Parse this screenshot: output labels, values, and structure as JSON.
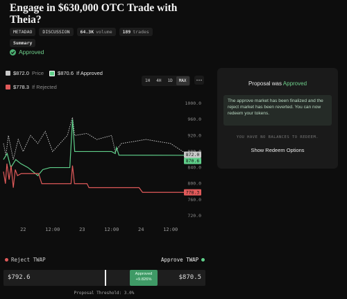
{
  "header": {
    "title": "Engage in $630,000 OTC Trade with Theia?",
    "tags": [
      "METADAO",
      "DISCUSSION"
    ],
    "volume": {
      "value": "64.3K",
      "label": "volume"
    },
    "trades": {
      "value": "189",
      "label": "trades"
    },
    "summary": "Summary",
    "status": "Approved"
  },
  "range_buttons": [
    "1H",
    "4H",
    "1D",
    "MAX"
  ],
  "chart_data": {
    "type": "line",
    "xlim": [
      -8,
      72.5
    ],
    "xticks": [
      {
        "value": 0,
        "label": "22"
      },
      {
        "value": 12,
        "label": "12:00"
      },
      {
        "value": 24,
        "label": "23"
      },
      {
        "value": 36,
        "label": "12:00"
      },
      {
        "value": 48,
        "label": "24"
      },
      {
        "value": 60,
        "label": "12:00"
      }
    ],
    "ylim": [
      705,
      1015
    ],
    "yticks": [
      {
        "value": 720,
        "label": "720.0"
      },
      {
        "value": 760,
        "label": "760.0"
      },
      {
        "value": 800,
        "label": "800.0"
      },
      {
        "value": 840,
        "label": "840.0"
      },
      {
        "value": 880,
        "label": "880.0"
      },
      {
        "value": 920,
        "label": "920.0"
      },
      {
        "value": 960,
        "label": "960.0"
      },
      {
        "value": 1000,
        "label": "1000.0"
      }
    ],
    "series": [
      {
        "name": "Price",
        "legend_value": "$872.0",
        "color": "#c8c8c8",
        "dashed": true,
        "x": [
          -8,
          -7,
          -6,
          -4,
          -2,
          0,
          3,
          6,
          9,
          12,
          15,
          18,
          20.1,
          21,
          26,
          30,
          36,
          37.5,
          40,
          45,
          50,
          55,
          60,
          65,
          72.5
        ],
        "values": [
          900,
          870,
          920,
          860,
          910,
          880,
          920,
          900,
          930,
          880,
          900,
          920,
          965,
          920,
          925,
          910,
          920,
          880,
          900,
          905,
          910,
          905,
          900,
          880,
          872
        ],
        "value_labels": [
          null,
          null,
          null,
          null,
          null,
          null,
          null,
          null,
          null,
          null,
          null,
          null,
          null,
          null,
          null,
          null,
          null,
          null,
          null,
          null,
          null,
          null,
          null,
          null,
          "872.0"
        ]
      },
      {
        "name": "If Approved",
        "legend_value": "$870.6",
        "color": "#5fcf8a",
        "dashed": false,
        "x": [
          -8,
          -6.5,
          -5,
          -3,
          -1,
          2,
          6,
          8,
          11,
          19,
          20.1,
          21,
          26,
          36,
          37.5,
          38,
          39,
          72.5
        ],
        "values": [
          860,
          875,
          840,
          860,
          850,
          840,
          820,
          835,
          840,
          840,
          960,
          880,
          880,
          880,
          875,
          890,
          871,
          870.6
        ],
        "value_labels": [
          null,
          null,
          null,
          null,
          null,
          null,
          null,
          null,
          null,
          null,
          null,
          null,
          null,
          null,
          null,
          null,
          null,
          "870.6"
        ]
      },
      {
        "name": "If Rejected",
        "legend_value": "$778.3",
        "color": "#e05a5a",
        "dashed": false,
        "x": [
          -8,
          -7.2,
          -6.6,
          -5.7,
          -4.9,
          -4,
          -3.2,
          -2.3,
          -0.8,
          2,
          6.3,
          7.6,
          11,
          19.5,
          20.1,
          20.9,
          26,
          26.8,
          47.2,
          48.6,
          72.5
        ],
        "values": [
          830,
          800,
          850,
          810,
          845,
          790,
          835,
          820,
          825,
          825,
          825,
          800,
          800,
          800,
          845,
          800,
          800,
          790,
          790,
          778.3,
          778.3
        ],
        "value_labels": [
          null,
          null,
          null,
          null,
          null,
          null,
          null,
          null,
          null,
          null,
          null,
          null,
          null,
          null,
          null,
          null,
          null,
          null,
          null,
          null,
          "778.3"
        ]
      }
    ]
  },
  "panel": {
    "title_prefix": "Proposal was",
    "title_status": "Approved",
    "message": "The approve market has been finalized and the reject market has been reverted. You can now redeem your tokens.",
    "balances": "YOU HAVE NO BALANCES TO REDEEM.",
    "action": "Show Redeem Options"
  },
  "twap": {
    "reject_label": "Reject TWAP",
    "approve_label": "Approve TWAP",
    "reject_value": "$792.6",
    "approve_value": "$870.5",
    "badge_status": "Approved",
    "badge_delta": "+9.826%",
    "threshold": "Proposal Threshold: 3.0%"
  }
}
